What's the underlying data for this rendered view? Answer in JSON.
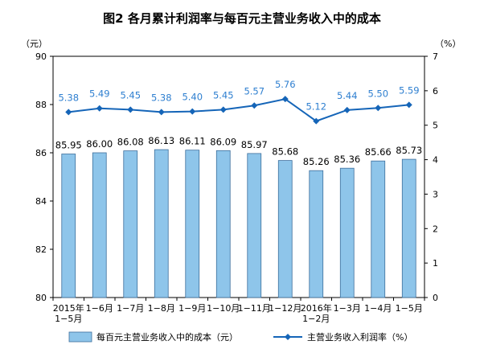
{
  "chart_data": {
    "title": "图2  各月累计利润率与每百元主营业务收入中的成本",
    "type": "bar",
    "left_unit": "（元）",
    "right_unit": "（%）",
    "categories": [
      [
        "2015年",
        "1−5月"
      ],
      [
        "1−6月"
      ],
      [
        "1−7月"
      ],
      [
        "1−8月"
      ],
      [
        "1−9月"
      ],
      [
        "1−10月"
      ],
      [
        "1−11月"
      ],
      [
        "1−12月"
      ],
      [
        "2016年",
        "1−2月"
      ],
      [
        "1−3月"
      ],
      [
        "1−4月"
      ],
      [
        "1−5月"
      ]
    ],
    "ylim_left": [
      80,
      90
    ],
    "yticks_left": [
      "80",
      "82",
      "84",
      "86",
      "88",
      "90"
    ],
    "ylim_right": [
      0,
      7
    ],
    "yticks_right": [
      "0",
      "1",
      "2",
      "3",
      "4",
      "5",
      "6",
      "7"
    ],
    "series": [
      {
        "name": "每百元主营业务收入中的成本（元）",
        "type": "bar",
        "axis": "left",
        "color": "#8ec5ea",
        "values": [
          85.95,
          86.0,
          86.08,
          86.13,
          86.11,
          86.09,
          85.97,
          85.68,
          85.26,
          85.36,
          85.66,
          85.73
        ],
        "labels": [
          "85.95",
          "86.00",
          "86.08",
          "86.13",
          "86.11",
          "86.09",
          "85.97",
          "85.68",
          "85.26",
          "85.36",
          "85.66",
          "85.73"
        ]
      },
      {
        "name": "主营业务收入利润率（%）",
        "type": "line",
        "axis": "right",
        "color": "#1565b8",
        "label_color": "#2e7fd0",
        "values": [
          5.38,
          5.49,
          5.45,
          5.38,
          5.4,
          5.45,
          5.57,
          5.76,
          5.12,
          5.44,
          5.5,
          5.59
        ],
        "labels": [
          "5.38",
          "5.49",
          "5.45",
          "5.38",
          "5.40",
          "5.45",
          "5.57",
          "5.76",
          "5.12",
          "5.44",
          "5.50",
          "5.59"
        ]
      }
    ],
    "grid": false,
    "legend_position": "bottom"
  }
}
